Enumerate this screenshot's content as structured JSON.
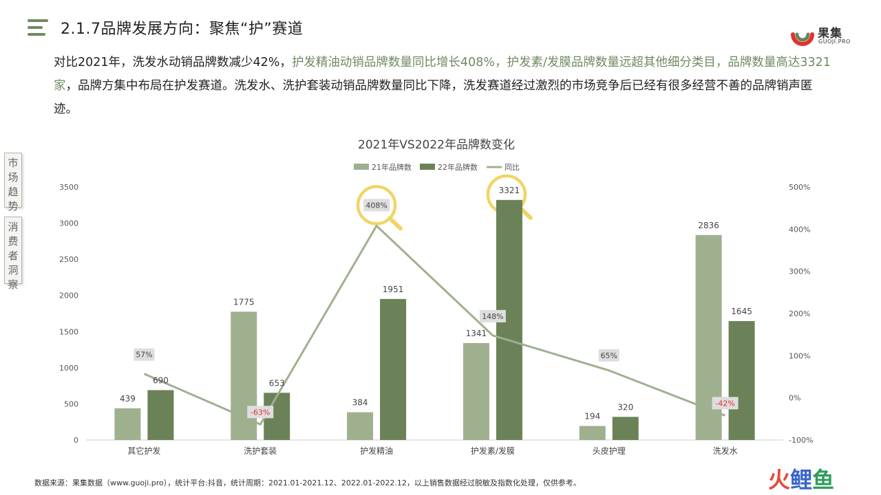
{
  "header": {
    "title": "2.1.7品牌发展方向：聚焦“护”赛道"
  },
  "logo": {
    "name_cn": "果集",
    "name_en": "GUOJI.PRO"
  },
  "intro": {
    "seg1": "对比2021年，洗发水动销品牌数减少42%，",
    "seg2": "护发精油动销品牌数量同比增长408%，护发素/发膜品牌数量远超其他细分类目，品牌数量高达3321家",
    "seg3": "，品牌方集中布局在护发赛道。洗发水、洗护套装动销品牌数量同比下降，洗发赛道经过激烈的市场竞争后已经有很多经营不善的品牌销声匿迹。"
  },
  "side_tabs": {
    "tab1": "市场趋势",
    "tab2": "消费者洞察"
  },
  "chart_data": {
    "type": "bar",
    "title": "2021年VS2022年品牌数变化",
    "categories": [
      "其它护发",
      "洗护套装",
      "护发精油",
      "护发素/发膜",
      "头皮护理",
      "洗发水"
    ],
    "series": [
      {
        "name": "21年品牌数",
        "type": "bar",
        "axis": "left",
        "values": [
          439,
          1775,
          384,
          1341,
          194,
          2836
        ]
      },
      {
        "name": "22年品牌数",
        "type": "bar",
        "axis": "left",
        "values": [
          690,
          653,
          1951,
          3321,
          320,
          1645
        ]
      },
      {
        "name": "同比",
        "type": "line",
        "axis": "right",
        "values": [
          57,
          -63,
          408,
          148,
          65,
          -42
        ]
      }
    ],
    "y_left_ticks": [
      "0",
      "500",
      "1000",
      "1500",
      "2000",
      "2500",
      "3000",
      "3500"
    ],
    "y_right_ticks": [
      "-100%",
      "0%",
      "100%",
      "200%",
      "300%",
      "400%",
      "500%"
    ],
    "yoy_labels": [
      "57%",
      "-63%",
      "408%",
      "148%",
      "65%",
      "-42%"
    ],
    "ylim_left": [
      0,
      3500
    ],
    "ylim_right": [
      -100,
      500
    ],
    "legend_position": "top-center",
    "highlight_categories": [
      2,
      3
    ],
    "colors": {
      "bar21": "#9fb08f",
      "bar22": "#6b8258",
      "line": "#9fb08f",
      "negative": "#e0332f",
      "highlight": "#f0d565",
      "label_box": "#dedede"
    }
  },
  "footer": {
    "source": "数据来源：果集数据（www.guoji.pro），统计平台:抖音，统计周期：2021.01-2021.12、2022.01-2022.12，以上销售数据经过脱敏及指数化处理，仅供参考。"
  },
  "watermark": {
    "c1": "火",
    "c2": "鲤",
    "c3": "鱼",
    "color1": "#e8463a",
    "color2": "#3a66c9",
    "color3": "#2e9d5a"
  }
}
